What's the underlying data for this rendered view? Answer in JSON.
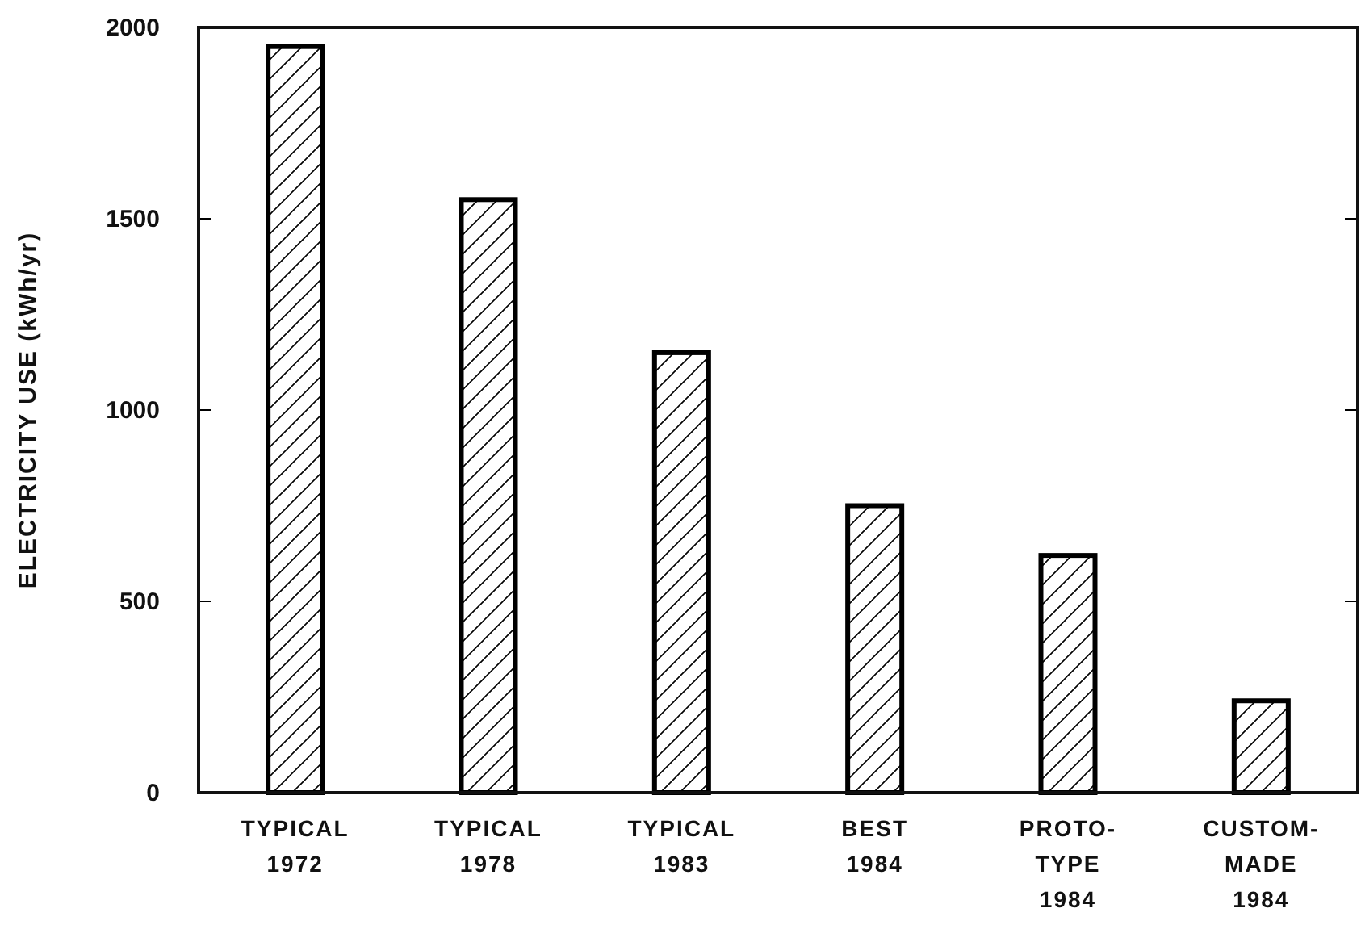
{
  "chart_data": {
    "type": "bar",
    "ylabel": "ELECTRICITY USE (kWh/yr)",
    "categories": [
      "TYPICAL\n1972",
      "TYPICAL\n1978",
      "TYPICAL\n1983",
      "BEST\n1984",
      "PROTO-\nTYPE\n1984",
      "CUSTOM-\nMADE\n1984"
    ],
    "values": [
      1950,
      1550,
      1150,
      750,
      620,
      240
    ],
    "color": "#000000",
    "ylim": [
      0,
      2000
    ],
    "yticks": [
      0,
      500,
      1000,
      1500,
      2000
    ],
    "grid": false
  }
}
